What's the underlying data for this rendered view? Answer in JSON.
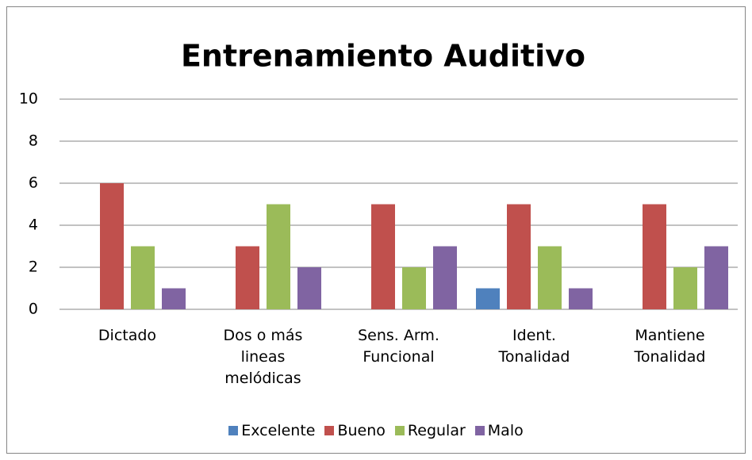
{
  "chart_data": {
    "type": "bar",
    "title": "Entrenamiento Auditivo",
    "categories": [
      "Dictado",
      "Dos o más lineas melódicas",
      "Sens. Arm. Funcional",
      "Ident. Tonalidad",
      "Mantiene Tonalidad"
    ],
    "series": [
      {
        "name": "Excelente",
        "color": "#4f81bd",
        "values": [
          0,
          0,
          0,
          1,
          0
        ]
      },
      {
        "name": "Bueno",
        "color": "#c0504d",
        "values": [
          6,
          3,
          5,
          5,
          5
        ]
      },
      {
        "name": "Regular",
        "color": "#9bbb59",
        "values": [
          3,
          5,
          2,
          3,
          2
        ]
      },
      {
        "name": "Malo",
        "color": "#8064a2",
        "values": [
          1,
          2,
          3,
          1,
          3
        ]
      }
    ],
    "ylim": [
      0,
      10
    ],
    "yticks": [
      0,
      2,
      4,
      6,
      8,
      10
    ],
    "grid": true,
    "legend": "bottom"
  }
}
